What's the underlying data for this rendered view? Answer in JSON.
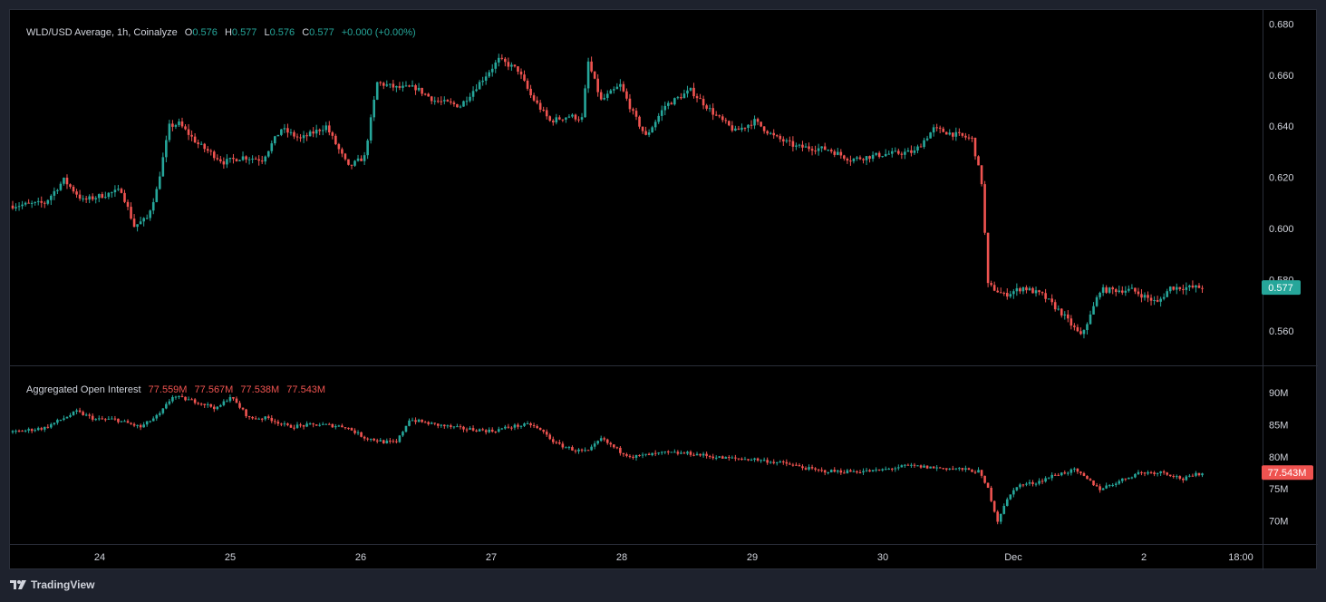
{
  "header": {
    "symbol": "WLD/USD Average, 1h, Coinalyze",
    "open_label": "O",
    "open": "0.576",
    "high_label": "H",
    "high": "0.577",
    "low_label": "L",
    "low": "0.576",
    "close_label": "C",
    "close": "0.577",
    "change": "+0.000 (+0.00%)"
  },
  "indicator": {
    "name": "Aggregated Open Interest",
    "values": [
      "77.559M",
      "77.567M",
      "77.538M",
      "77.543M"
    ]
  },
  "price_badge": "0.577",
  "oi_badge": "77.543M",
  "brand": "TradingView",
  "colors": {
    "up": "#26a69a",
    "down": "#ef5350",
    "background": "#000000",
    "grid": "#2a2e39"
  },
  "chart_data": [
    {
      "type": "candlestick",
      "title": "WLD/USD Average, 1h, Coinalyze",
      "ylim": [
        0.548,
        0.684
      ],
      "y_ticks": [
        "0.560",
        "0.580",
        "0.600",
        "0.620",
        "0.640",
        "0.660",
        "0.680"
      ],
      "x_ticks": [
        "24",
        "25",
        "26",
        "27",
        "28",
        "29",
        "30",
        "Dec",
        "2",
        "18:00"
      ],
      "key_points": [
        [
          0,
          0.609
        ],
        [
          10,
          0.61
        ],
        [
          16,
          0.619
        ],
        [
          22,
          0.611
        ],
        [
          28,
          0.613
        ],
        [
          34,
          0.615
        ],
        [
          38,
          0.601
        ],
        [
          42,
          0.604
        ],
        [
          45,
          0.615
        ],
        [
          49,
          0.64
        ],
        [
          52,
          0.641
        ],
        [
          58,
          0.633
        ],
        [
          66,
          0.626
        ],
        [
          72,
          0.628
        ],
        [
          78,
          0.627
        ],
        [
          84,
          0.639
        ],
        [
          90,
          0.635
        ],
        [
          98,
          0.64
        ],
        [
          105,
          0.624
        ],
        [
          110,
          0.628
        ],
        [
          114,
          0.657
        ],
        [
          120,
          0.655
        ],
        [
          126,
          0.655
        ],
        [
          132,
          0.65
        ],
        [
          140,
          0.648
        ],
        [
          146,
          0.657
        ],
        [
          152,
          0.666
        ],
        [
          158,
          0.662
        ],
        [
          162,
          0.652
        ],
        [
          168,
          0.642
        ],
        [
          174,
          0.644
        ],
        [
          178,
          0.643
        ],
        [
          180,
          0.665
        ],
        [
          184,
          0.65
        ],
        [
          190,
          0.656
        ],
        [
          194,
          0.645
        ],
        [
          198,
          0.636
        ],
        [
          204,
          0.648
        ],
        [
          212,
          0.654
        ],
        [
          220,
          0.644
        ],
        [
          226,
          0.638
        ],
        [
          232,
          0.642
        ],
        [
          238,
          0.636
        ],
        [
          245,
          0.632
        ],
        [
          255,
          0.631
        ],
        [
          262,
          0.627
        ],
        [
          272,
          0.629
        ],
        [
          282,
          0.63
        ],
        [
          288,
          0.639
        ],
        [
          294,
          0.637
        ],
        [
          300,
          0.635
        ],
        [
          303,
          0.618
        ],
        [
          305,
          0.578
        ],
        [
          310,
          0.574
        ],
        [
          316,
          0.577
        ],
        [
          322,
          0.574
        ],
        [
          328,
          0.567
        ],
        [
          334,
          0.558
        ],
        [
          337,
          0.566
        ],
        [
          340,
          0.576
        ],
        [
          350,
          0.576
        ],
        [
          358,
          0.571
        ],
        [
          362,
          0.577
        ]
      ]
    },
    {
      "type": "candlestick",
      "title": "Aggregated Open Interest",
      "unit": "M",
      "ylim": [
        67,
        93.5
      ],
      "y_ticks": [
        "70M",
        "75M",
        "80M",
        "85M",
        "90M"
      ],
      "key_points": [
        [
          0,
          83.8
        ],
        [
          10,
          84.5
        ],
        [
          20,
          87.0
        ],
        [
          26,
          85.8
        ],
        [
          32,
          85.8
        ],
        [
          40,
          84.6
        ],
        [
          46,
          86.6
        ],
        [
          50,
          89.4
        ],
        [
          58,
          88.5
        ],
        [
          64,
          87.5
        ],
        [
          68,
          89.4
        ],
        [
          74,
          86.0
        ],
        [
          80,
          86.0
        ],
        [
          86,
          84.7
        ],
        [
          96,
          85.0
        ],
        [
          104,
          84.7
        ],
        [
          110,
          83.0
        ],
        [
          116,
          82.3
        ],
        [
          120,
          82.2
        ],
        [
          124,
          85.8
        ],
        [
          132,
          85.0
        ],
        [
          140,
          84.4
        ],
        [
          150,
          84.0
        ],
        [
          156,
          84.7
        ],
        [
          162,
          85.0
        ],
        [
          166,
          83.8
        ],
        [
          170,
          82.0
        ],
        [
          176,
          81.0
        ],
        [
          180,
          80.8
        ],
        [
          184,
          82.8
        ],
        [
          190,
          80.8
        ],
        [
          194,
          80.0
        ],
        [
          204,
          80.6
        ],
        [
          212,
          80.5
        ],
        [
          222,
          79.8
        ],
        [
          232,
          79.6
        ],
        [
          242,
          78.9
        ],
        [
          252,
          77.8
        ],
        [
          260,
          77.7
        ],
        [
          270,
          77.8
        ],
        [
          280,
          78.6
        ],
        [
          288,
          78.3
        ],
        [
          296,
          78.1
        ],
        [
          302,
          77.7
        ],
        [
          305,
          75.0
        ],
        [
          308,
          70.0
        ],
        [
          310,
          72.5
        ],
        [
          314,
          75.5
        ],
        [
          320,
          76.0
        ],
        [
          326,
          77.2
        ],
        [
          332,
          77.9
        ],
        [
          336,
          76.5
        ],
        [
          340,
          75.0
        ],
        [
          346,
          76.2
        ],
        [
          352,
          77.5
        ],
        [
          360,
          77.6
        ],
        [
          366,
          76.5
        ],
        [
          372,
          77.543
        ]
      ]
    }
  ]
}
